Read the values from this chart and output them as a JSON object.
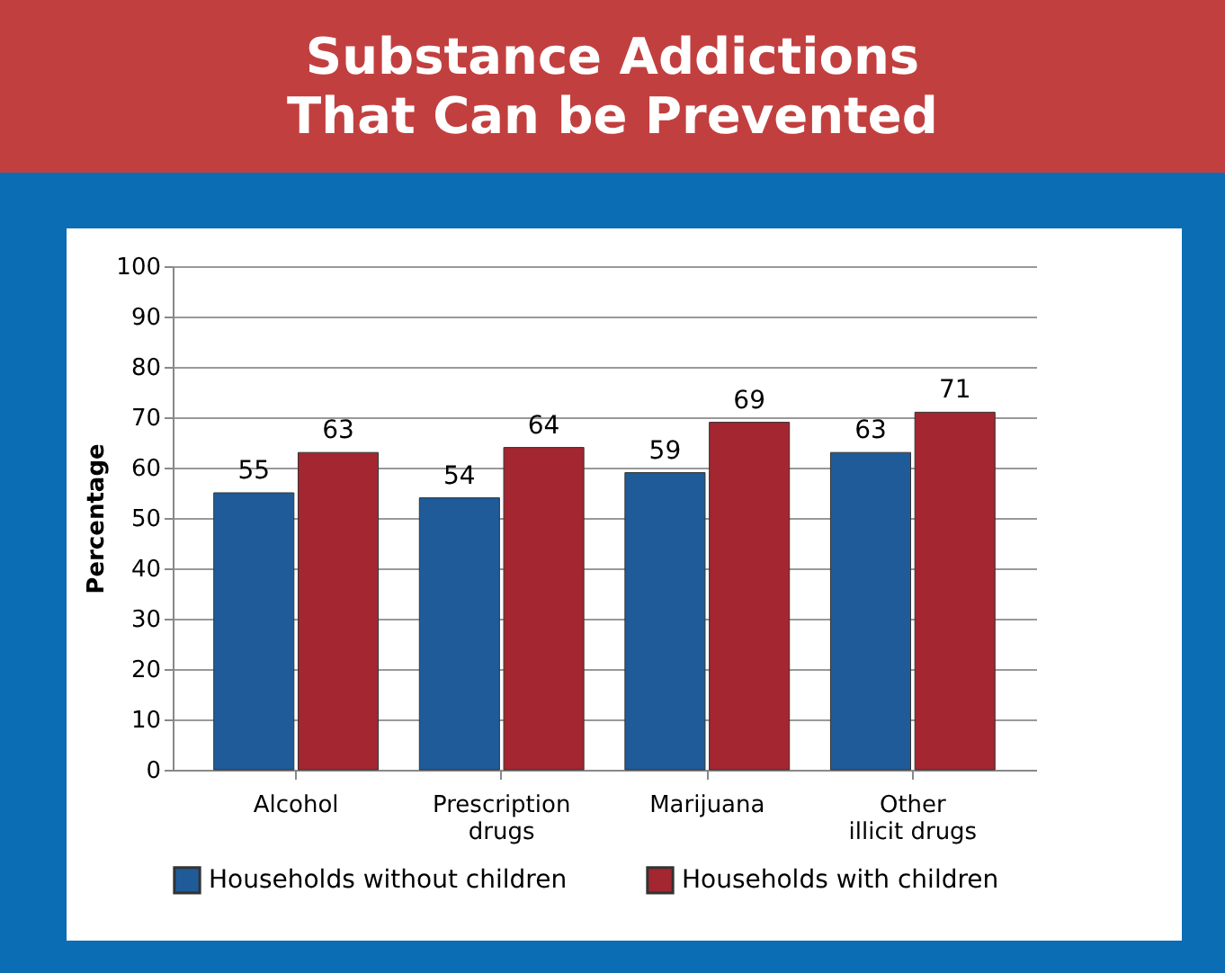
{
  "chart_data": {
    "type": "bar",
    "title": "Substance Addictions That Can be Prevented",
    "ylabel": "Percentage",
    "categories": [
      "Alcohol",
      "Prescription drugs",
      "Marijuana",
      "Other illicit drugs"
    ],
    "series": [
      {
        "name": "Households without children",
        "color": "#1f5b98",
        "values": [
          55,
          54,
          59,
          63
        ]
      },
      {
        "name": "Households with children",
        "color": "#a32630",
        "values": [
          63,
          64,
          69,
          71
        ]
      }
    ],
    "ylim": [
      0,
      100
    ],
    "yticks": [
      0,
      10,
      20,
      30,
      40,
      50,
      60,
      70,
      80,
      90,
      100
    ],
    "grid": "y",
    "legend": "bottom",
    "data_labels": true
  }
}
